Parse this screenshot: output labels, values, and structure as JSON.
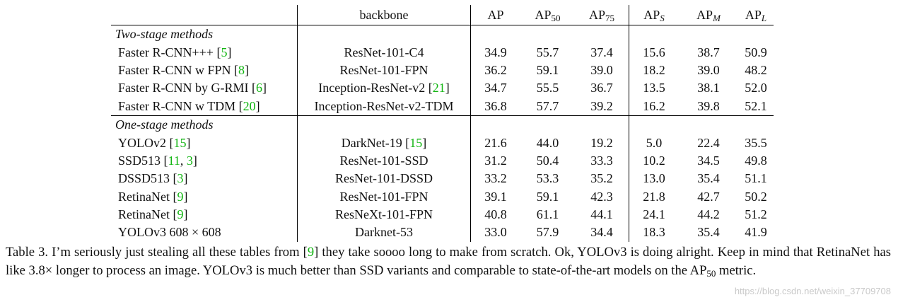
{
  "table": {
    "header": {
      "backbone": "backbone",
      "ap": "AP",
      "ap50_base": "AP",
      "ap50_sub": "50",
      "ap75_base": "AP",
      "ap75_sub": "75",
      "aps_base": "AP",
      "aps_sub": "S",
      "apm_base": "AP",
      "apm_sub": "M",
      "apl_base": "AP",
      "apl_sub": "L"
    },
    "sections": [
      {
        "title": "Two-stage methods",
        "rows": [
          {
            "name": "Faster R-CNN+++ [",
            "cite": "5",
            "cite2": "",
            "end": "]",
            "backbone": "ResNet-101-C4",
            "bcite": "",
            "bend": "",
            "vals": [
              "34.9",
              "55.7",
              "37.4",
              "15.6",
              "38.7",
              "50.9"
            ],
            "bold": [
              false,
              false,
              false,
              false,
              false,
              false
            ]
          },
          {
            "name": "Faster R-CNN w FPN [",
            "cite": "8",
            "cite2": "",
            "end": "]",
            "backbone": "ResNet-101-FPN",
            "bcite": "",
            "bend": "",
            "vals": [
              "36.2",
              "59.1",
              "39.0",
              "18.2",
              "39.0",
              "48.2"
            ],
            "bold": [
              false,
              false,
              false,
              false,
              false,
              false
            ]
          },
          {
            "name": "Faster R-CNN by G-RMI [",
            "cite": "6",
            "cite2": "",
            "end": "]",
            "backbone": "Inception-ResNet-v2 [",
            "bcite": "21",
            "bend": "]",
            "vals": [
              "34.7",
              "55.5",
              "36.7",
              "13.5",
              "38.1",
              "52.0"
            ],
            "bold": [
              false,
              false,
              false,
              false,
              false,
              false
            ]
          },
          {
            "name": "Faster R-CNN w TDM [",
            "cite": "20",
            "cite2": "",
            "end": "]",
            "backbone": "Inception-ResNet-v2-TDM",
            "bcite": "",
            "bend": "",
            "vals": [
              "36.8",
              "57.7",
              "39.2",
              "16.2",
              "39.8",
              "52.1"
            ],
            "bold": [
              false,
              false,
              false,
              false,
              false,
              true
            ]
          }
        ]
      },
      {
        "title": "One-stage methods",
        "rows": [
          {
            "name": "YOLOv2 [",
            "cite": "15",
            "cite2": "",
            "end": "]",
            "backbone": "DarkNet-19 [",
            "bcite": "15",
            "bend": "]",
            "vals": [
              "21.6",
              "44.0",
              "19.2",
              "5.0",
              "22.4",
              "35.5"
            ],
            "bold": [
              false,
              false,
              false,
              false,
              false,
              false
            ]
          },
          {
            "name": "SSD513 [",
            "cite": "11",
            "cite2": "3",
            "end": "]",
            "backbone": "ResNet-101-SSD",
            "bcite": "",
            "bend": "",
            "vals": [
              "31.2",
              "50.4",
              "33.3",
              "10.2",
              "34.5",
              "49.8"
            ],
            "bold": [
              false,
              false,
              false,
              false,
              false,
              false
            ]
          },
          {
            "name": "DSSD513 [",
            "cite": "3",
            "cite2": "",
            "end": "]",
            "backbone": "ResNet-101-DSSD",
            "bcite": "",
            "bend": "",
            "vals": [
              "33.2",
              "53.3",
              "35.2",
              "13.0",
              "35.4",
              "51.1"
            ],
            "bold": [
              false,
              false,
              false,
              false,
              false,
              false
            ]
          },
          {
            "name": "RetinaNet [",
            "cite": "9",
            "cite2": "",
            "end": "]",
            "backbone": "ResNet-101-FPN",
            "bcite": "",
            "bend": "",
            "vals": [
              "39.1",
              "59.1",
              "42.3",
              "21.8",
              "42.7",
              "50.2"
            ],
            "bold": [
              false,
              false,
              false,
              false,
              false,
              false
            ]
          },
          {
            "name": "RetinaNet [",
            "cite": "9",
            "cite2": "",
            "end": "]",
            "backbone": "ResNeXt-101-FPN",
            "bcite": "",
            "bend": "",
            "vals": [
              "40.8",
              "61.1",
              "44.1",
              "24.1",
              "44.2",
              "51.2"
            ],
            "bold": [
              true,
              true,
              true,
              true,
              true,
              false
            ]
          },
          {
            "name": "YOLOv3 608 × 608",
            "cite": "",
            "cite2": "",
            "end": "",
            "backbone": "Darknet-53",
            "bcite": "",
            "bend": "",
            "vals": [
              "33.0",
              "57.9",
              "34.4",
              "18.3",
              "35.4",
              "41.9"
            ],
            "bold": [
              false,
              false,
              false,
              false,
              false,
              false
            ]
          }
        ]
      }
    ]
  },
  "caption": {
    "p1": "Table 3. I’m seriously just stealing all these tables from [",
    "cite": "9",
    "p2": "] they take soooo long to make from scratch. Ok, YOLOv3 is doing alright. Keep in mind that RetinaNet has like 3.8× longer to process an image. YOLOv3 is much better than SSD variants and comparable to state-of-the-art models on the AP",
    "sub": "50",
    "p3": " metric."
  },
  "watermark": "https://blog.csdn.net/weixin_37709708"
}
